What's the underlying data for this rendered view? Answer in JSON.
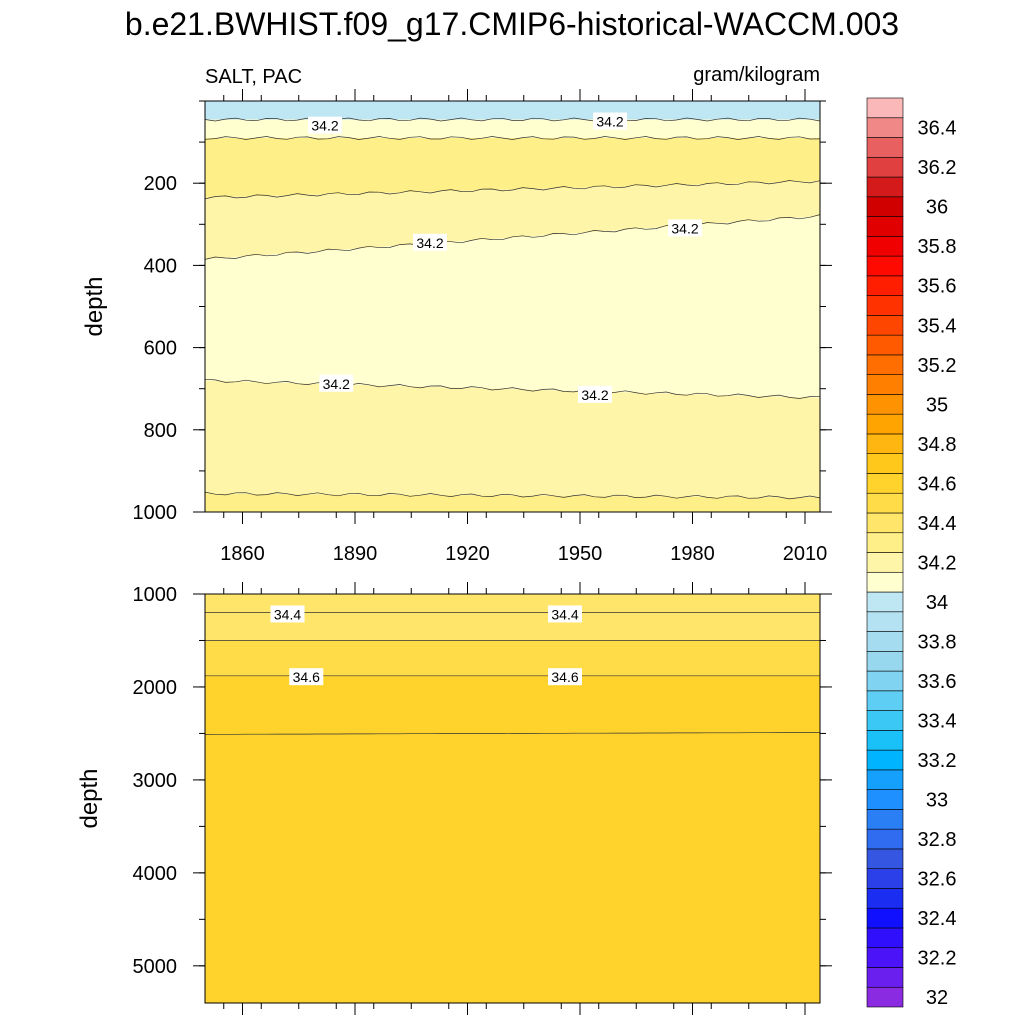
{
  "title": "b.e21.BWHIST.f09_g17.CMIP6-historical-WACCM.003",
  "chart_data": {
    "type": "heatmap",
    "variable": "SALT, PAC",
    "units": "gram/kilogram",
    "ylabel": "depth",
    "x_ticks": [
      1860,
      1890,
      1920,
      1950,
      1980,
      2010
    ],
    "xlim": [
      1850,
      2014
    ],
    "colorbar": {
      "levels": [
        32,
        32.1,
        32.2,
        32.3,
        32.4,
        32.5,
        32.6,
        32.7,
        32.8,
        32.9,
        33,
        33.1,
        33.2,
        33.3,
        33.4,
        33.5,
        33.6,
        33.7,
        33.8,
        33.9,
        34,
        34.1,
        34.2,
        34.3,
        34.4,
        34.5,
        34.6,
        34.7,
        34.8,
        34.9,
        35,
        35.1,
        35.2,
        35.3,
        35.4,
        35.5,
        35.6,
        35.7,
        35.8,
        35.9,
        36,
        36.1,
        36.2,
        36.3,
        36.4,
        36.5
      ],
      "labels": [
        "32",
        "32.2",
        "32.4",
        "32.6",
        "32.8",
        "33",
        "33.2",
        "33.4",
        "33.6",
        "33.8",
        "34",
        "34.2",
        "34.4",
        "34.6",
        "34.8",
        "35",
        "35.2",
        "35.4",
        "35.6",
        "35.8",
        "36",
        "36.2",
        "36.4"
      ],
      "colors": [
        "#8a2be2",
        "#6a1fef",
        "#4b14f8",
        "#2f0ffc",
        "#1010ff",
        "#1a2df0",
        "#2b40e8",
        "#3456e0",
        "#2f6cf0",
        "#2b7ff5",
        "#1e90ff",
        "#14a0fc",
        "#00b4ff",
        "#1ac0f8",
        "#3cc8f5",
        "#5ecef5",
        "#80d4f2",
        "#98d8ef",
        "#a6dcf0",
        "#b4e2f2",
        "#bfe6f3",
        "#ffffd0",
        "#fff5a8",
        "#ffef88",
        "#ffe66a",
        "#ffdc48",
        "#ffd22c",
        "#ffc81a",
        "#ffb610",
        "#ffa400",
        "#ff9200",
        "#ff8000",
        "#ff6e00",
        "#ff5a00",
        "#ff4600",
        "#ff3200",
        "#ff1e00",
        "#ff0a00",
        "#f00000",
        "#e00000",
        "#d00000",
        "#d41a1a",
        "#e04040",
        "#e86060",
        "#f08888",
        "#fab8b8"
      ]
    },
    "panels": [
      {
        "name": "upper-ocean",
        "ylim": [
          1000,
          0
        ],
        "y_ticks": [
          200,
          400,
          600,
          800,
          1000
        ],
        "bands": [
          {
            "top": [
              0,
              0
            ],
            "bottom": [
              45,
              45
            ],
            "value": 34.05
          },
          {
            "top": [
              45,
              45
            ],
            "bottom": [
              90,
              90
            ],
            "value": 34.15
          },
          {
            "top": [
              90,
              90
            ],
            "bottom": [
              235,
              195
            ],
            "value": 34.3
          },
          {
            "top": [
              235,
              195
            ],
            "bottom": [
              385,
              280
            ],
            "value": 34.25
          },
          {
            "top": [
              385,
              280
            ],
            "bottom": [
              680,
              722
            ],
            "value": 34.1
          },
          {
            "top": [
              680,
              722
            ],
            "bottom": [
              955,
              965
            ],
            "value": 34.25
          },
          {
            "top": [
              955,
              965
            ],
            "bottom": [
              1000,
              1000
            ],
            "value": 34.3
          }
        ],
        "contour_labels": [
          {
            "text": "34.2",
            "x": 1882,
            "y": 60
          },
          {
            "text": "34.2",
            "x": 1958,
            "y": 50
          },
          {
            "text": "34.2",
            "x": 1910,
            "y": 345
          },
          {
            "text": "34.2",
            "x": 1978,
            "y": 310
          },
          {
            "text": "34.2",
            "x": 1885,
            "y": 688
          },
          {
            "text": "34.2",
            "x": 1954,
            "y": 715
          }
        ]
      },
      {
        "name": "deep-ocean",
        "ylim": [
          5400,
          1000
        ],
        "y_ticks": [
          1000,
          2000,
          3000,
          4000,
          5000
        ],
        "bands": [
          {
            "top": [
              1000,
              1000
            ],
            "bottom": [
              1200,
              1200
            ],
            "value": 34.45
          },
          {
            "top": [
              1200,
              1200
            ],
            "bottom": [
              1500,
              1500
            ],
            "value": 34.45
          },
          {
            "top": [
              1500,
              1500
            ],
            "bottom": [
              1880,
              1880
            ],
            "value": 34.55
          },
          {
            "top": [
              1880,
              1880
            ],
            "bottom": [
              2510,
              2490
            ],
            "value": 34.65
          },
          {
            "top": [
              2510,
              2490
            ],
            "bottom": [
              5400,
              5400
            ],
            "value": 34.65
          }
        ],
        "contour_labels": [
          {
            "text": "34.4",
            "x": 1872,
            "y": 1220
          },
          {
            "text": "34.4",
            "x": 1946,
            "y": 1220
          },
          {
            "text": "34.6",
            "x": 1877,
            "y": 1895
          },
          {
            "text": "34.6",
            "x": 1946,
            "y": 1895
          }
        ]
      }
    ]
  }
}
